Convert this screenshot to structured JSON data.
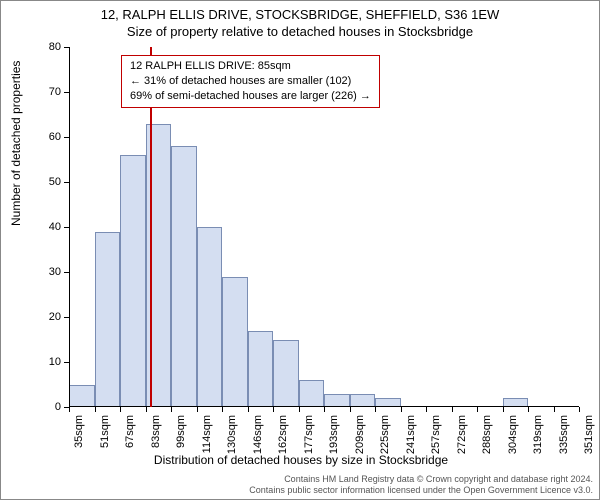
{
  "title_main": "12, RALPH ELLIS DRIVE, STOCKSBRIDGE, SHEFFIELD, S36 1EW",
  "title_sub": "Size of property relative to detached houses in Stocksbridge",
  "info_box": {
    "line1": "12 RALPH ELLIS DRIVE: 85sqm",
    "line2": "← 31% of detached houses are smaller (102)",
    "line3": "69% of semi-detached houses are larger (226) →"
  },
  "ylabel": "Number of detached properties",
  "xlabel": "Distribution of detached houses by size in Stocksbridge",
  "footer1": "Contains HM Land Registry data © Crown copyright and database right 2024.",
  "footer2": "Contains public sector information licensed under the Open Government Licence v3.0.",
  "chart": {
    "type": "histogram",
    "ylim": [
      0,
      80
    ],
    "yticks": [
      0,
      10,
      20,
      30,
      40,
      50,
      60,
      70,
      80
    ],
    "xtick_labels": [
      "35sqm",
      "51sqm",
      "67sqm",
      "83sqm",
      "99sqm",
      "114sqm",
      "130sqm",
      "146sqm",
      "162sqm",
      "177sqm",
      "193sqm",
      "209sqm",
      "225sqm",
      "241sqm",
      "257sqm",
      "272sqm",
      "288sqm",
      "304sqm",
      "319sqm",
      "335sqm",
      "351sqm"
    ],
    "values": [
      5,
      39,
      56,
      63,
      58,
      40,
      29,
      17,
      15,
      6,
      3,
      3,
      2,
      0,
      0,
      0,
      0,
      2,
      0,
      0
    ],
    "bar_fill": "#d4def1",
    "bar_border": "#7a8db3",
    "vline_color": "#c00000",
    "vline_at_sqm": 85,
    "x_range": [
      35,
      351
    ],
    "background": "#ffffff",
    "font_family": "Arial",
    "title_fontsize": 13,
    "label_fontsize": 12,
    "tick_fontsize": 11
  }
}
